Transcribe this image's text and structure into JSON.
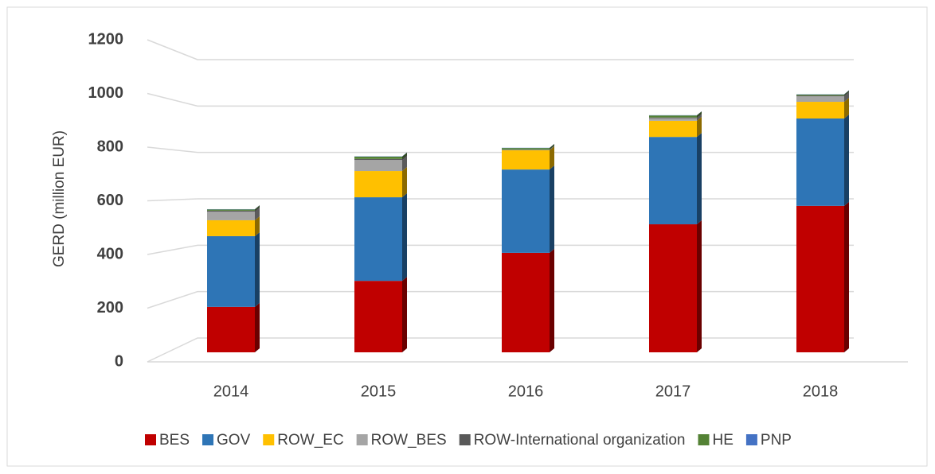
{
  "chart_data": {
    "type": "bar",
    "stacked": true,
    "y_label": "GERD (million EUR)",
    "categories": [
      "2014",
      "2015",
      "2016",
      "2017",
      "2018"
    ],
    "series": [
      {
        "name": "BES",
        "color": "#c00000",
        "values": [
          180,
          283,
          394,
          507,
          580
        ]
      },
      {
        "name": "GOV",
        "color": "#2e75b6",
        "values": [
          280,
          331,
          330,
          346,
          346
        ]
      },
      {
        "name": "ROW_EC",
        "color": "#ffc000",
        "values": [
          63,
          104,
          76,
          64,
          66
        ]
      },
      {
        "name": "ROW_BES",
        "color": "#a5a5a5",
        "values": [
          34,
          44,
          2,
          10,
          22
        ]
      },
      {
        "name": "ROW-International organization",
        "color": "#595959",
        "values": [
          4,
          4,
          1,
          3,
          3
        ]
      },
      {
        "name": "HE",
        "color": "#548235",
        "values": [
          5,
          9,
          6,
          8,
          4
        ]
      },
      {
        "name": "PNP",
        "color": "#4472c4",
        "values": [
          1,
          1,
          1,
          1,
          1
        ]
      }
    ],
    "ylim": [
      0,
      1200
    ],
    "yticks": [
      0,
      200,
      400,
      600,
      800,
      1000,
      1200
    ],
    "grid": true,
    "legend": "bottom"
  }
}
